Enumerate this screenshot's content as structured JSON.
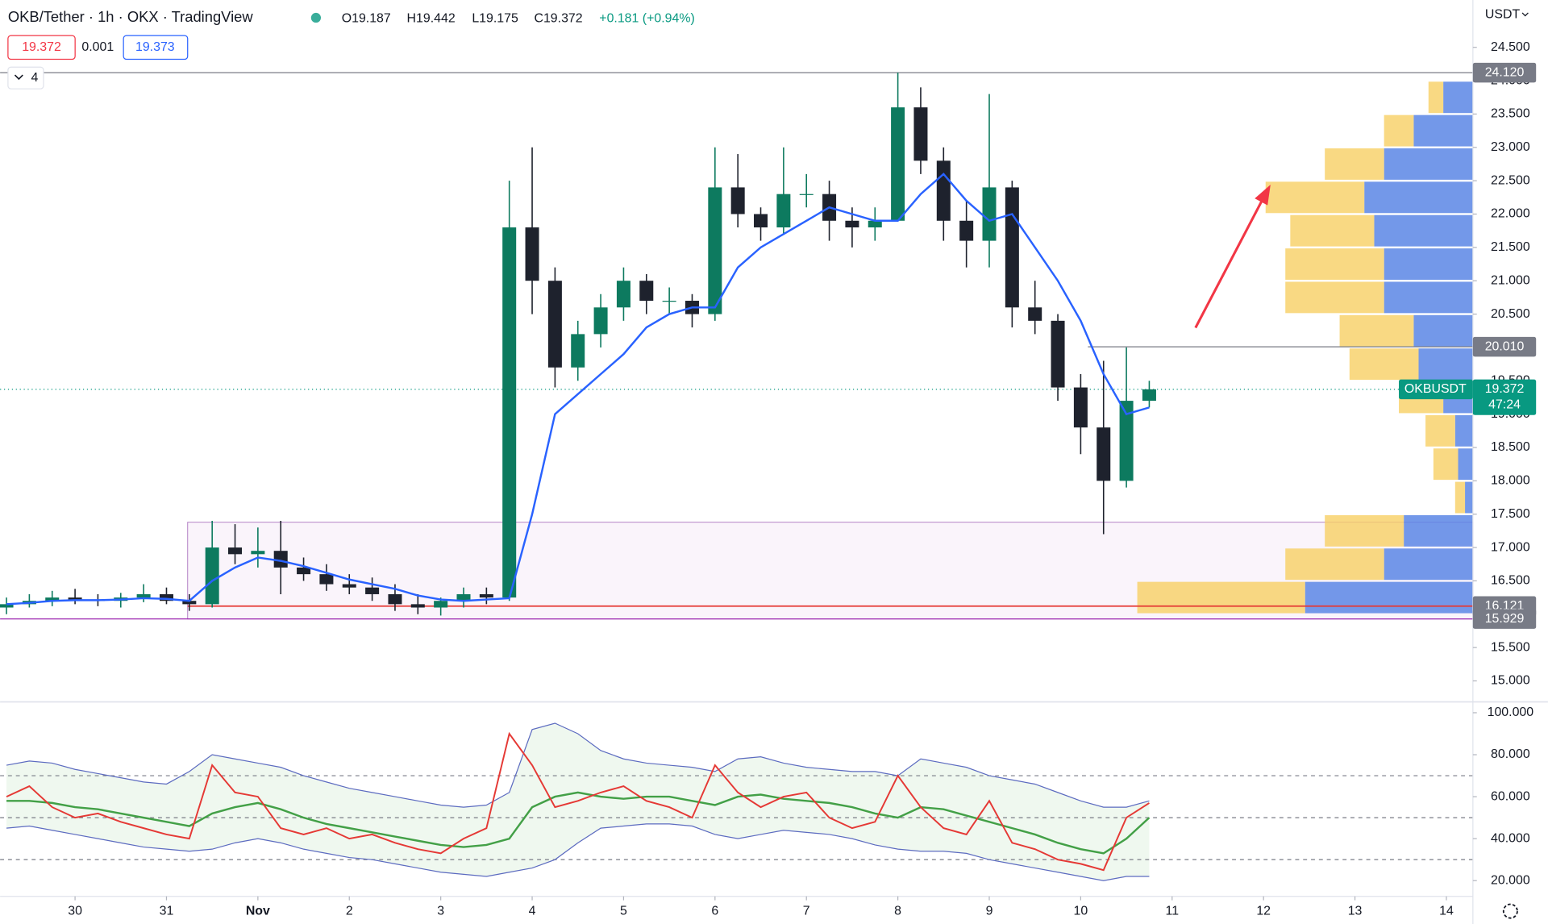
{
  "chart_data": [
    {
      "type": "candlestick",
      "title": "OKB/Tether · 1h · OKX · TradingView",
      "ohlc_labels": [
        "O19.187",
        "H19.442",
        "L19.175",
        "C19.372",
        "+0.181 (+0.94%)"
      ],
      "bid": "19.372",
      "spread": "0.001",
      "ask": "19.373",
      "indicator_count": "4",
      "currency": "USDT",
      "x": [
        -0.75,
        -0.5,
        -0.25,
        0,
        0.25,
        0.5,
        0.75,
        1,
        1.25,
        1.5,
        1.75,
        2,
        2.25,
        2.5,
        2.75,
        3,
        3.25,
        3.5,
        3.75,
        4,
        4.25,
        4.5,
        4.75,
        5,
        5.25,
        5.5,
        5.75,
        6,
        6.25,
        6.5,
        6.75,
        7,
        7.25,
        7.5,
        7.75,
        8,
        8.25,
        8.5,
        8.75,
        9,
        9.25,
        9.5,
        9.75,
        10,
        10.25,
        10.5,
        10.75,
        11,
        11.25,
        11.5,
        11.75
      ],
      "open": [
        16.1,
        16.15,
        16.2,
        16.25,
        16.22,
        16.2,
        16.25,
        16.3,
        16.2,
        16.15,
        17.0,
        16.9,
        16.95,
        16.7,
        16.6,
        16.45,
        16.4,
        16.3,
        16.15,
        16.1,
        16.2,
        16.3,
        16.25,
        21.8,
        21.0,
        19.7,
        20.2,
        20.6,
        21.0,
        20.7,
        20.7,
        20.5,
        22.4,
        22.0,
        21.8,
        22.3,
        22.3,
        21.9,
        21.8,
        21.9,
        23.6,
        22.8,
        21.9,
        21.6,
        22.4,
        20.6,
        20.4,
        19.4,
        18.8,
        18.0,
        19.2
      ],
      "high": [
        16.25,
        16.3,
        16.35,
        16.38,
        16.3,
        16.32,
        16.45,
        16.4,
        16.3,
        17.4,
        17.35,
        17.3,
        17.4,
        16.85,
        16.75,
        16.6,
        16.55,
        16.45,
        16.3,
        16.25,
        16.4,
        16.4,
        22.5,
        23.0,
        21.2,
        20.4,
        20.8,
        21.2,
        21.1,
        20.9,
        20.8,
        23.0,
        22.9,
        22.1,
        23.0,
        22.6,
        22.5,
        22.1,
        22.1,
        24.12,
        23.9,
        23.0,
        22.2,
        23.8,
        22.5,
        21.0,
        20.5,
        19.6,
        19.8,
        20.0,
        19.5
      ],
      "low": [
        16.0,
        16.1,
        16.12,
        16.15,
        16.12,
        16.1,
        16.18,
        16.15,
        16.05,
        16.1,
        16.75,
        16.7,
        16.3,
        16.5,
        16.35,
        16.3,
        16.2,
        16.05,
        16.0,
        15.98,
        16.1,
        16.15,
        16.2,
        20.5,
        19.4,
        19.5,
        20.0,
        20.4,
        20.5,
        20.5,
        20.3,
        20.4,
        21.8,
        21.6,
        21.7,
        22.1,
        21.6,
        21.5,
        21.6,
        21.9,
        22.6,
        21.6,
        21.2,
        21.2,
        20.3,
        20.2,
        19.2,
        18.4,
        17.2,
        17.9,
        19.1
      ],
      "close": [
        16.15,
        16.2,
        16.25,
        16.22,
        16.2,
        16.25,
        16.3,
        16.2,
        16.15,
        17.0,
        16.9,
        16.95,
        16.7,
        16.6,
        16.45,
        16.4,
        16.3,
        16.15,
        16.1,
        16.2,
        16.3,
        16.25,
        21.8,
        21.0,
        19.7,
        20.2,
        20.6,
        21.0,
        20.7,
        20.7,
        20.5,
        22.4,
        22.0,
        21.8,
        22.3,
        22.3,
        21.9,
        21.8,
        21.9,
        23.6,
        22.8,
        21.9,
        21.6,
        22.4,
        20.6,
        20.4,
        19.4,
        18.8,
        18.0,
        19.2,
        19.372
      ],
      "up_color": "#0d7a5f",
      "down_color": "#1e222d",
      "ema_color": "#2962ff",
      "ema_values": [
        16.15,
        16.17,
        16.2,
        16.21,
        16.21,
        16.22,
        16.24,
        16.23,
        16.2,
        16.5,
        16.7,
        16.85,
        16.8,
        16.72,
        16.62,
        16.52,
        16.45,
        16.38,
        16.28,
        16.22,
        16.2,
        16.22,
        16.24,
        17.5,
        19.0,
        19.3,
        19.6,
        19.9,
        20.3,
        20.5,
        20.6,
        20.6,
        21.2,
        21.5,
        21.7,
        21.9,
        22.1,
        22.0,
        21.9,
        21.9,
        22.3,
        22.6,
        22.2,
        21.9,
        22.0,
        21.5,
        21.0,
        20.4,
        19.6,
        19.0,
        19.1
      ],
      "xlim": [
        -0.82,
        15.29
      ],
      "xticks": [
        {
          "value": 0,
          "label": "30"
        },
        {
          "value": 1,
          "label": "31"
        },
        {
          "value": 2,
          "label": "Nov"
        },
        {
          "value": 3,
          "label": "2"
        },
        {
          "value": 4,
          "label": "3"
        },
        {
          "value": 5,
          "label": "4"
        },
        {
          "value": 6,
          "label": "5"
        },
        {
          "value": 7,
          "label": "6"
        },
        {
          "value": 8,
          "label": "7"
        },
        {
          "value": 9,
          "label": "8"
        },
        {
          "value": 10,
          "label": "9"
        },
        {
          "value": 11,
          "label": "10"
        },
        {
          "value": 12,
          "label": "11"
        },
        {
          "value": 13,
          "label": "12"
        },
        {
          "value": 14,
          "label": "13"
        },
        {
          "value": 15,
          "label": "14"
        }
      ],
      "ylim": [
        14.7,
        25.21
      ],
      "yticks": [
        {
          "value": 15,
          "label": "15.000"
        },
        {
          "value": 15.5,
          "label": "15.500"
        },
        {
          "value": 16,
          "label": "16.000"
        },
        {
          "value": 16.5,
          "label": "16.500"
        },
        {
          "value": 17,
          "label": "17.000"
        },
        {
          "value": 17.5,
          "label": "17.500"
        },
        {
          "value": 18,
          "label": "18.000"
        },
        {
          "value": 18.5,
          "label": "18.500"
        },
        {
          "value": 19,
          "label": "19.000"
        },
        {
          "value": 19.5,
          "label": "19.500"
        },
        {
          "value": 20,
          "label": "20.000"
        },
        {
          "value": 20.5,
          "label": "20.500"
        },
        {
          "value": 21,
          "label": "21.000"
        },
        {
          "value": 21.5,
          "label": "21.500"
        },
        {
          "value": 22,
          "label": "22.000"
        },
        {
          "value": 22.5,
          "label": "22.500"
        },
        {
          "value": 23,
          "label": "23.000"
        },
        {
          "value": 23.5,
          "label": "23.500"
        },
        {
          "value": 24,
          "label": "24.000"
        },
        {
          "value": 24.5,
          "label": "24.500"
        }
      ],
      "price_lines": [
        {
          "value": 24.12,
          "label": "24.120",
          "color": "#787b86"
        },
        {
          "value": 20.01,
          "label": "20.010",
          "color": "#787b86"
        },
        {
          "value": 16.121,
          "label": "16.121",
          "color": "#e53935"
        },
        {
          "value": 15.929,
          "label": "15.929",
          "color": "#9c27b0"
        }
      ],
      "current": {
        "name": "OKBUSDT",
        "value": 19.372,
        "label": "19.372",
        "countdown": "47:24",
        "color": "#089981"
      },
      "volume_profile": {
        "levels": [
          16.0,
          16.5,
          17.0,
          17.5,
          18.0,
          18.5,
          19.0,
          19.5,
          20.0,
          20.5,
          21.0,
          21.5,
          22.0,
          22.5,
          23.0,
          23.5
        ],
        "sell": [
          170,
          100,
          80,
          10,
          25,
          30,
          45,
          70,
          75,
          100,
          100,
          85,
          100,
          60,
          30,
          15
        ],
        "buy": [
          170,
          90,
          70,
          8,
          15,
          18,
          30,
          55,
          60,
          90,
          90,
          100,
          110,
          90,
          60,
          30
        ],
        "sell_color": "#f7cf64",
        "buy_color": "#5b86e5"
      }
    },
    {
      "type": "line",
      "values": [
        60,
        65,
        55,
        50,
        52,
        48,
        45,
        42,
        40,
        75,
        62,
        60,
        45,
        42,
        45,
        40,
        42,
        38,
        35,
        33,
        40,
        45,
        90,
        75,
        55,
        58,
        62,
        65,
        58,
        55,
        50,
        75,
        62,
        55,
        60,
        62,
        50,
        45,
        48,
        70,
        55,
        45,
        42,
        58,
        38,
        35,
        30,
        28,
        25,
        50,
        57
      ],
      "color": "#e53935",
      "ma_values": [
        58,
        58,
        57,
        55,
        54,
        52,
        50,
        48,
        46,
        52,
        55,
        57,
        54,
        50,
        47,
        45,
        43,
        41,
        39,
        37,
        36,
        37,
        40,
        55,
        60,
        62,
        60,
        59,
        60,
        60,
        58,
        56,
        60,
        61,
        59,
        58,
        57,
        55,
        52,
        50,
        55,
        54,
        51,
        48,
        45,
        42,
        38,
        35,
        33,
        40,
        50
      ],
      "ma_color": "#43a047",
      "upper": [
        75,
        77,
        76,
        73,
        71,
        69,
        67,
        66,
        72,
        80,
        78,
        76,
        74,
        70,
        67,
        64,
        62,
        60,
        58,
        56,
        55,
        56,
        62,
        92,
        95,
        90,
        82,
        78,
        76,
        75,
        74,
        72,
        78,
        79,
        76,
        74,
        73,
        72,
        72,
        70,
        78,
        76,
        74,
        70,
        68,
        66,
        62,
        58,
        55,
        55,
        58
      ],
      "lower": [
        45,
        46,
        44,
        42,
        40,
        38,
        36,
        35,
        34,
        35,
        38,
        40,
        38,
        35,
        33,
        31,
        30,
        28,
        26,
        24,
        23,
        22,
        24,
        26,
        30,
        38,
        45,
        46,
        47,
        47,
        46,
        42,
        40,
        42,
        44,
        43,
        42,
        40,
        37,
        35,
        34,
        34,
        33,
        30,
        28,
        26,
        24,
        22,
        20,
        22,
        22
      ],
      "band_color": "#5c6bc0",
      "levels": [
        70,
        50,
        30
      ],
      "ylim": [
        12.5,
        104.7
      ],
      "yticks": [
        {
          "value": 20,
          "label": "20.000"
        },
        {
          "value": 40,
          "label": "40.000"
        },
        {
          "value": 60,
          "label": "60.000"
        },
        {
          "value": 80,
          "label": "80.000"
        },
        {
          "value": 100,
          "label": "100.000"
        }
      ]
    }
  ]
}
